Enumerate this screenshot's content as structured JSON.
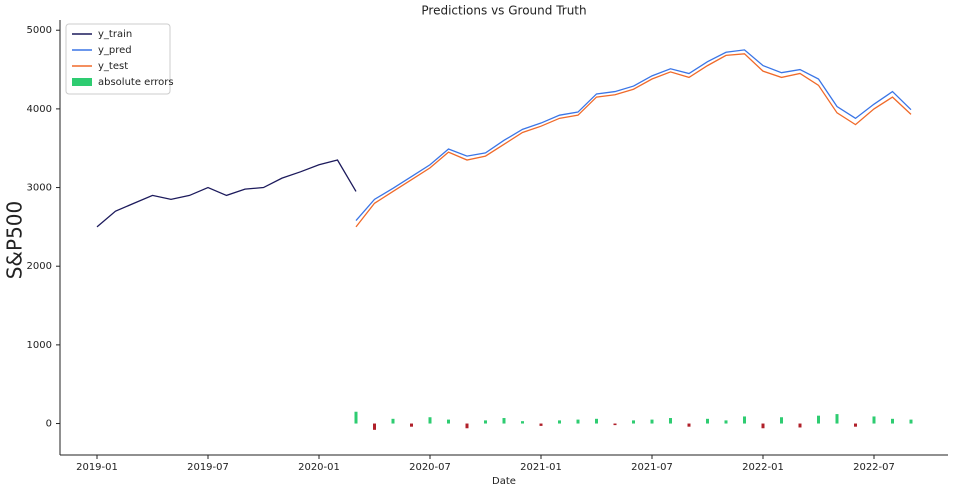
{
  "chart_data": {
    "type": "line",
    "title": "Predictions vs Ground Truth",
    "x_label": "Date",
    "y_label": "S&P500",
    "x": [
      "2019-01",
      "2019-02",
      "2019-03",
      "2019-04",
      "2019-05",
      "2019-06",
      "2019-07",
      "2019-08",
      "2019-09",
      "2019-10",
      "2019-11",
      "2019-12",
      "2020-01",
      "2020-02",
      "2020-03",
      "2020-04",
      "2020-05",
      "2020-06",
      "2020-07",
      "2020-08",
      "2020-09",
      "2020-10",
      "2020-11",
      "2020-12",
      "2021-01",
      "2021-02",
      "2021-03",
      "2021-04",
      "2021-05",
      "2021-06",
      "2021-07",
      "2021-08",
      "2021-09",
      "2021-10",
      "2021-11",
      "2021-12",
      "2022-01",
      "2022-02",
      "2022-03",
      "2022-04",
      "2022-05",
      "2022-06",
      "2022-07",
      "2022-08",
      "2022-09"
    ],
    "series": [
      {
        "name": "y_train",
        "color": "#1c1a5c",
        "values": [
          2500,
          2700,
          2800,
          2900,
          2850,
          2900,
          3000,
          2900,
          2980,
          3000,
          3120,
          3200,
          3290,
          3350,
          2950,
          null,
          null,
          null,
          null,
          null,
          null,
          null,
          null,
          null,
          null,
          null,
          null,
          null,
          null,
          null,
          null,
          null,
          null,
          null,
          null,
          null,
          null,
          null,
          null,
          null,
          null,
          null,
          null,
          null,
          null
        ]
      },
      {
        "name": "y_pred",
        "color": "#3a75e6",
        "values": [
          null,
          null,
          null,
          null,
          null,
          null,
          null,
          null,
          null,
          null,
          null,
          null,
          null,
          null,
          2580,
          2850,
          2990,
          3140,
          3290,
          3490,
          3400,
          3440,
          3600,
          3740,
          3820,
          3920,
          3960,
          4190,
          4220,
          4290,
          4420,
          4510,
          4450,
          4600,
          4720,
          4750,
          4550,
          4460,
          4500,
          4380,
          4030,
          3880,
          4060,
          4220,
          3990
        ]
      },
      {
        "name": "y_test",
        "color": "#f06a2a",
        "values": [
          null,
          null,
          null,
          null,
          null,
          null,
          null,
          null,
          null,
          null,
          null,
          null,
          null,
          null,
          2500,
          2800,
          2950,
          3100,
          3250,
          3450,
          3350,
          3400,
          3550,
          3700,
          3780,
          3880,
          3920,
          4150,
          4180,
          4250,
          4380,
          4470,
          4400,
          4550,
          4680,
          4700,
          4480,
          4400,
          4450,
          4300,
          3950,
          3800,
          4000,
          4150,
          3930
        ]
      },
      {
        "name": "absolute errors",
        "type": "bar",
        "color": "#2ecc71",
        "negative_color": "#b0202a",
        "values": [
          null,
          null,
          null,
          null,
          null,
          null,
          null,
          null,
          null,
          null,
          null,
          null,
          null,
          null,
          150,
          -80,
          60,
          -40,
          80,
          50,
          -60,
          40,
          70,
          30,
          -30,
          40,
          50,
          60,
          -20,
          40,
          50,
          70,
          -40,
          60,
          40,
          90,
          -60,
          80,
          -50,
          100,
          120,
          -40,
          90,
          60,
          50
        ]
      }
    ],
    "xlim": [
      "2018-11",
      "2022-11"
    ],
    "xticks": [
      "2019-01",
      "2019-07",
      "2020-01",
      "2020-07",
      "2021-01",
      "2021-07",
      "2022-01",
      "2022-07"
    ],
    "ylim": [
      -400,
      5130
    ],
    "yticks": [
      0,
      1000,
      2000,
      3000,
      4000,
      5000
    ],
    "grid": false,
    "legend": "upper-left"
  }
}
